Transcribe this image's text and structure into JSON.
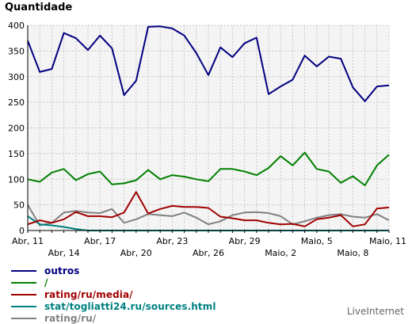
{
  "chart_data": {
    "type": "line",
    "title": "",
    "ylabel": "Quantidade",
    "ylim": [
      0,
      400
    ],
    "yticks": [
      0,
      50,
      100,
      150,
      200,
      250,
      300,
      350,
      400
    ],
    "grid": true,
    "legend_position": "bottom-left",
    "x": [
      "Abr, 11",
      "Abr, 12",
      "Abr, 13",
      "Abr, 14",
      "Abr, 15",
      "Abr, 16",
      "Abr, 17",
      "Abr, 18",
      "Abr, 19",
      "Abr, 20",
      "Abr, 21",
      "Abr, 22",
      "Abr, 23",
      "Abr, 24",
      "Abr, 25",
      "Abr, 26",
      "Abr, 27",
      "Abr, 28",
      "Abr, 29",
      "Abr, 30",
      "Maio, 1",
      "Maio, 2",
      "Maio, 3",
      "Maio, 4",
      "Maio, 5",
      "Maio, 6",
      "Maio, 7",
      "Maio, 8",
      "Maio, 9",
      "Maio, 10",
      "Maio, 11"
    ],
    "x_tick_labels_top": [
      "Abr, 11",
      "Abr, 17",
      "Abr, 23",
      "Abr, 29",
      "Maio, 5",
      "Maio, 11"
    ],
    "x_tick_labels_bottom": [
      "Abr, 14",
      "Abr, 20",
      "Abr, 26",
      "Maio, 2",
      "Maio, 8"
    ],
    "series": [
      {
        "name": "outros",
        "color": "#000080",
        "values": [
          370,
          309,
          315,
          385,
          375,
          352,
          380,
          355,
          264,
          292,
          397,
          398,
          394,
          380,
          346,
          303,
          357,
          338,
          365,
          376,
          266,
          281,
          294,
          341,
          320,
          339,
          335,
          279,
          252,
          281,
          283
        ]
      },
      {
        "name": "/",
        "color": "#008000",
        "values": [
          100,
          95,
          113,
          120,
          98,
          110,
          115,
          90,
          92,
          98,
          118,
          100,
          108,
          105,
          100,
          96,
          120,
          120,
          115,
          108,
          122,
          145,
          127,
          152,
          120,
          115,
          93,
          106,
          88,
          127,
          148
        ]
      },
      {
        "name": "rating/ru/media/",
        "color": "#a00000",
        "values": [
          12,
          20,
          15,
          22,
          36,
          28,
          28,
          26,
          35,
          75,
          33,
          42,
          48,
          46,
          46,
          44,
          27,
          24,
          20,
          20,
          15,
          12,
          13,
          8,
          22,
          25,
          30,
          8,
          12,
          43,
          45
        ]
      },
      {
        "name": "stat/togliatti24.ru/sources.html",
        "color": "#008080",
        "values": [
          28,
          12,
          10,
          7,
          3,
          0,
          0,
          0,
          0,
          0,
          0,
          0,
          0,
          0,
          0,
          0,
          0,
          0,
          0,
          0,
          0,
          0,
          0,
          0,
          0,
          0,
          0,
          0,
          0,
          0,
          0
        ]
      },
      {
        "name": "rating/ru/",
        "color": "#808080",
        "values": [
          50,
          10,
          15,
          35,
          38,
          35,
          34,
          42,
          15,
          22,
          32,
          30,
          28,
          35,
          25,
          12,
          18,
          30,
          35,
          36,
          34,
          28,
          12,
          18,
          25,
          30,
          32,
          27,
          25,
          32,
          20
        ]
      }
    ]
  },
  "footer": {
    "brand": "LiveInternet"
  }
}
